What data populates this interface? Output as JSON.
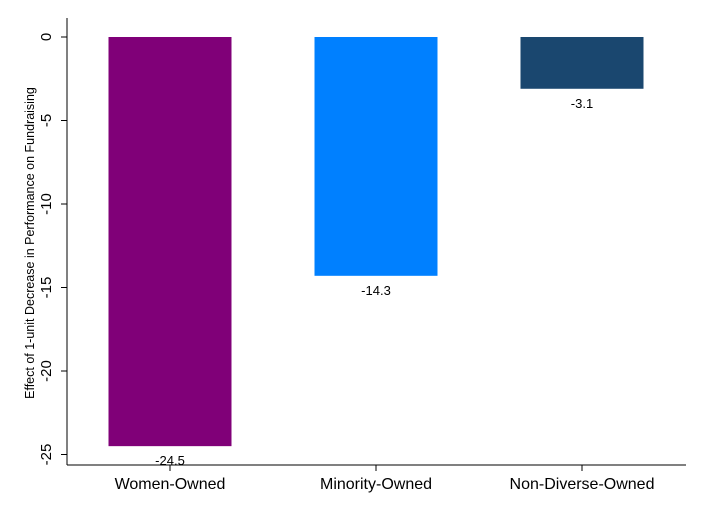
{
  "chart_data": {
    "type": "bar",
    "title": "",
    "xlabel": "",
    "ylabel": "Effect of 1-unit Decrease in Performance on Fundraising",
    "categories": [
      "Women-Owned",
      "Minority-Owned",
      "Non-Diverse-Owned"
    ],
    "values": [
      -24.5,
      -14.3,
      -3.1
    ],
    "data_labels": [
      "-24.5",
      "-14.3",
      "-3.1"
    ],
    "colors": [
      "#800078",
      "#0080FF",
      "#1A476F"
    ],
    "ylim": [
      -26,
      1
    ],
    "yticks": [
      0,
      -5,
      -10,
      -15,
      -20,
      -25
    ],
    "ytick_labels": [
      "0",
      "-5",
      "-10",
      "-15",
      "-20",
      "-25"
    ],
    "grid": false,
    "legend": "none"
  }
}
